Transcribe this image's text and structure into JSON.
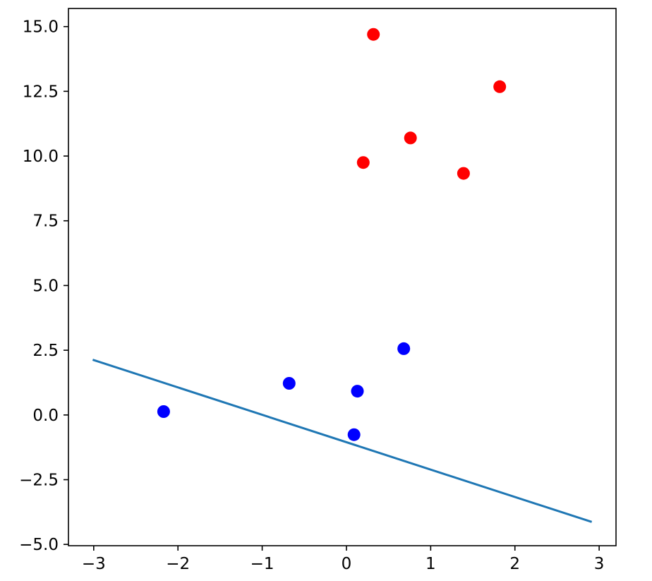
{
  "chart_data": {
    "type": "scatter",
    "title": "",
    "xlabel": "",
    "ylabel": "",
    "xlim": [
      -3.3,
      3.2
    ],
    "ylim": [
      -5.05,
      15.7
    ],
    "grid": false,
    "xticks": [
      -3,
      -2,
      -1,
      0,
      1,
      2,
      3
    ],
    "xtick_labels": [
      "−3",
      "−2",
      "−1",
      "0",
      "1",
      "2",
      "3"
    ],
    "yticks": [
      -5.0,
      -2.5,
      0.0,
      2.5,
      5.0,
      7.5,
      10.0,
      12.5,
      15.0
    ],
    "ytick_labels": [
      "−5.0",
      "−2.5",
      "0.0",
      "2.5",
      "5.0",
      "7.5",
      "10.0",
      "12.5",
      "15.0"
    ],
    "series": [
      {
        "type": "scatter",
        "color": "#ff0000",
        "points": [
          {
            "x": 0.32,
            "y": 14.7
          },
          {
            "x": 1.82,
            "y": 12.68
          },
          {
            "x": 0.76,
            "y": 10.7
          },
          {
            "x": 0.2,
            "y": 9.75
          },
          {
            "x": 1.39,
            "y": 9.33
          }
        ]
      },
      {
        "type": "scatter",
        "color": "#0000ff",
        "points": [
          {
            "x": 0.68,
            "y": 2.56
          },
          {
            "x": -0.68,
            "y": 1.22
          },
          {
            "x": 0.13,
            "y": 0.92
          },
          {
            "x": -2.17,
            "y": 0.13
          },
          {
            "x": 0.09,
            "y": -0.76
          }
        ]
      },
      {
        "type": "line",
        "color": "#1f77b4",
        "points": [
          {
            "x": -3.0,
            "y": 2.12
          },
          {
            "x": 2.9,
            "y": -4.12
          }
        ]
      }
    ]
  }
}
